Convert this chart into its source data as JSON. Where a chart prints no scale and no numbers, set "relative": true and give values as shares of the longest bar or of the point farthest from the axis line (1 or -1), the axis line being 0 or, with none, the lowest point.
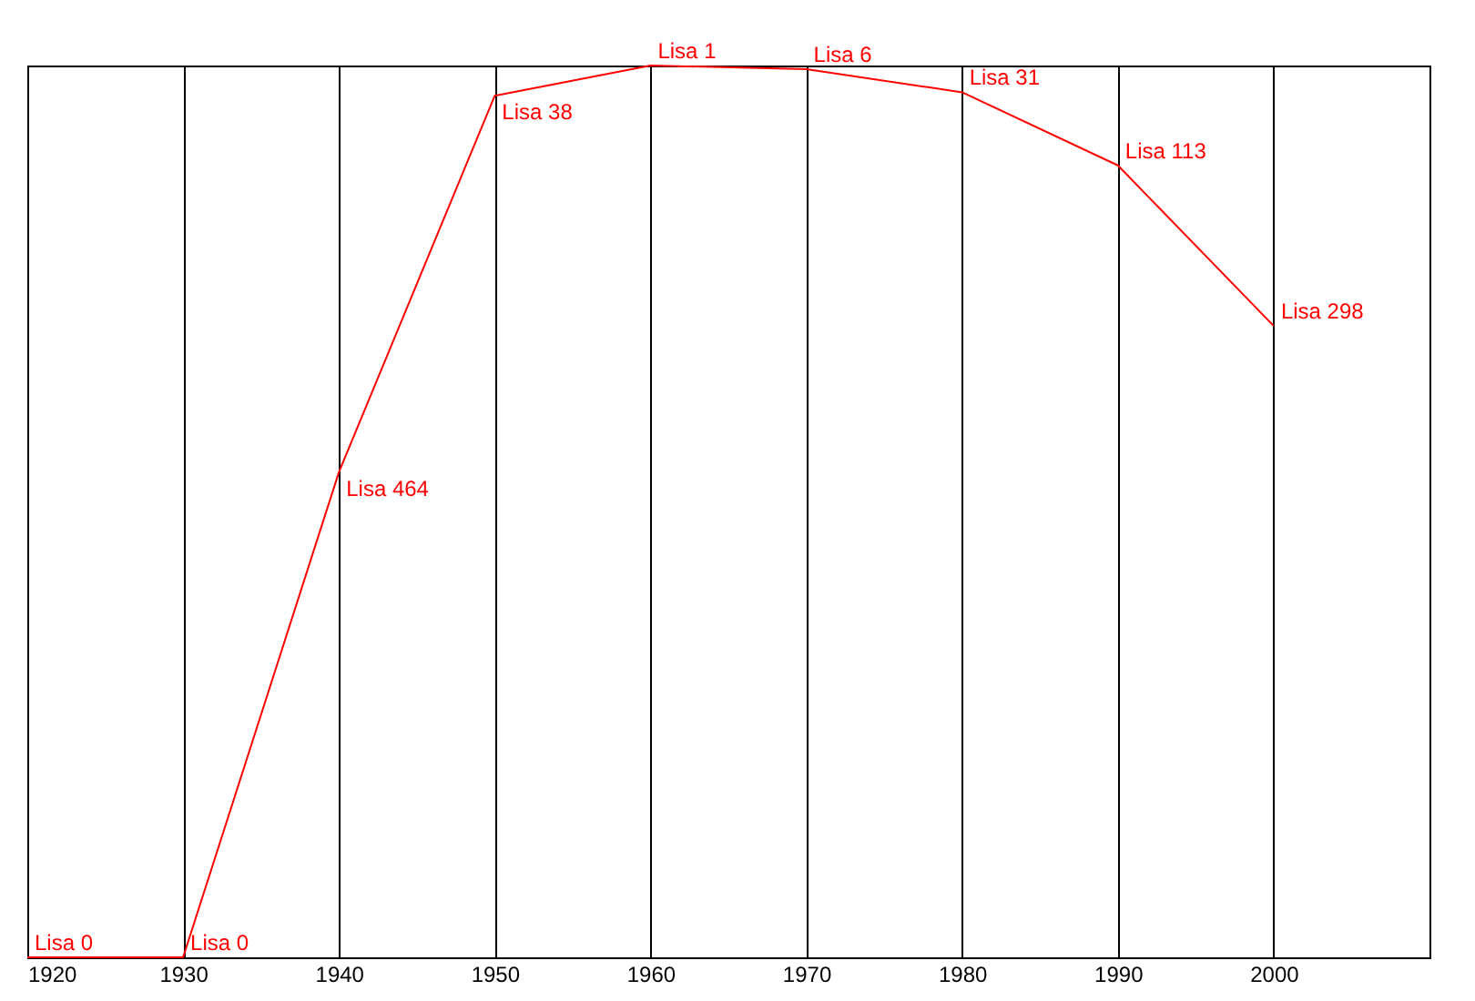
{
  "chart_data": {
    "type": "line",
    "relative": true,
    "x": [
      1920,
      1930,
      1940,
      1950,
      1960,
      1970,
      1980,
      1990,
      2000
    ],
    "series": [
      {
        "color": "#ff0000",
        "values": [
          0,
          0,
          0.544,
          0.966,
          1,
          0.996,
          0.97,
          0.888,
          0.708
        ]
      }
    ],
    "xlim": [
      1920,
      2010
    ],
    "xticks": [
      1920,
      1930,
      1940,
      1950,
      1960,
      1970,
      1980,
      1990,
      2000
    ],
    "grid": "x",
    "annotations": [
      {
        "text": "Lisa 0",
        "x": 1920,
        "y": 0
      },
      {
        "text": "Lisa 0",
        "x": 1930,
        "y": 0
      },
      {
        "text": "Lisa 464",
        "x": 1940,
        "y": 0.544
      },
      {
        "text": "Lisa 38",
        "x": 1950,
        "y": 0.966
      },
      {
        "text": "Lisa 1",
        "x": 1960,
        "y": 1
      },
      {
        "text": "Lisa 6",
        "x": 1970,
        "y": 0.996
      },
      {
        "text": "Lisa 31",
        "x": 1980,
        "y": 0.97
      },
      {
        "text": "Lisa 113",
        "x": 1990,
        "y": 0.888
      },
      {
        "text": "Lisa 298",
        "x": 2000,
        "y": 0.708
      }
    ]
  }
}
